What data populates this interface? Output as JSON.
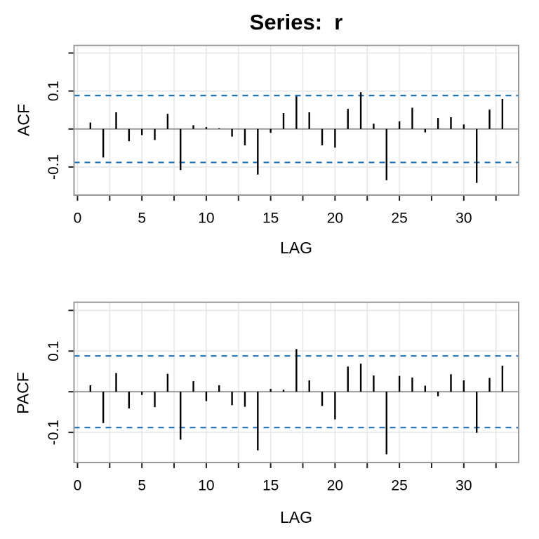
{
  "title": "Series:  r",
  "chart_data": {
    "type": "bar",
    "subtype": "acf-pacf-stem-plot",
    "title": "Series:  r",
    "lags": [
      1,
      2,
      3,
      4,
      5,
      6,
      7,
      8,
      9,
      10,
      11,
      12,
      13,
      14,
      15,
      16,
      17,
      18,
      19,
      20,
      21,
      22,
      23,
      24,
      25,
      26,
      27,
      28,
      29,
      30,
      31,
      32,
      33
    ],
    "panels": [
      {
        "name": "ACF",
        "ylabel": "ACF",
        "xlabel": "LAG",
        "values": [
          0.017,
          -0.075,
          0.044,
          -0.032,
          -0.016,
          -0.029,
          0.04,
          -0.108,
          0.01,
          0.005,
          0.002,
          -0.02,
          -0.043,
          -0.12,
          -0.01,
          0.042,
          0.086,
          0.044,
          -0.043,
          -0.049,
          0.053,
          0.097,
          0.014,
          -0.135,
          0.02,
          0.056,
          -0.009,
          0.029,
          0.031,
          0.012,
          -0.142,
          0.051,
          0.079
        ]
      },
      {
        "name": "PACF",
        "ylabel": "PACF",
        "xlabel": "LAG",
        "values": [
          0.016,
          -0.077,
          0.046,
          -0.041,
          -0.008,
          -0.038,
          0.044,
          -0.118,
          0.026,
          -0.023,
          0.016,
          -0.033,
          -0.037,
          -0.144,
          0.007,
          0.005,
          0.105,
          0.028,
          -0.035,
          -0.068,
          0.062,
          0.069,
          0.04,
          -0.154,
          0.039,
          0.035,
          0.015,
          -0.011,
          0.043,
          0.028,
          -0.101,
          0.034,
          0.064
        ]
      }
    ],
    "confidence_level": 0.088,
    "xlim": [
      -0.27,
      34.26
    ],
    "ylim": [
      -0.174,
      0.22
    ],
    "x_ticks": [
      0,
      2.5,
      5,
      7.5,
      10,
      12.5,
      15,
      17.5,
      20,
      22.5,
      25,
      27.5,
      30,
      32.5
    ],
    "x_major_ticks": [
      0,
      5,
      10,
      15,
      20,
      25,
      30
    ],
    "x_tick_labels": [
      "0",
      "5",
      "10",
      "15",
      "20",
      "25",
      "30"
    ],
    "y_ticks": [
      {
        "v": 0.2,
        "label": ""
      },
      {
        "v": 0.1,
        "label": "0.1"
      },
      {
        "v": 0.0,
        "label": ""
      },
      {
        "v": -0.1,
        "label": "-0.1"
      }
    ],
    "grid": true,
    "legend": "none"
  },
  "style": {
    "ci_line_color": "#2171b5",
    "bar_color": "#000000",
    "grid_color": "#e7e7e7",
    "axis_color": "#999999",
    "tick_color": "#222222",
    "background": "#ffffff"
  }
}
